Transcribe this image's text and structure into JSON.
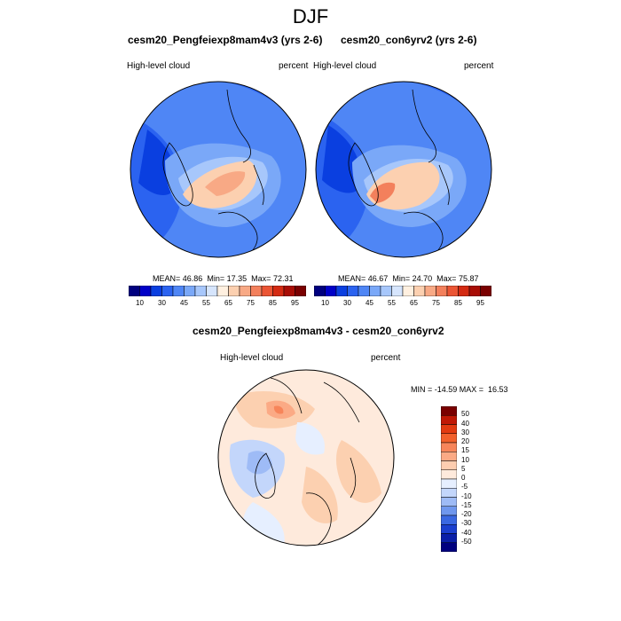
{
  "figure": {
    "title": "DJF"
  },
  "panels": [
    {
      "title": "cesm20_Pengfeiexp8mam4v3 (yrs 2-6)",
      "left_label": "High-level cloud",
      "right_label": "percent",
      "stats": {
        "mean_label": "MEAN=",
        "mean": "46.86",
        "min_label": "Min=",
        "min": "17.35",
        "max_label": "Max=",
        "max": "72.31"
      }
    },
    {
      "title": "cesm20_con6yrv2 (yrs 2-6)",
      "left_label": "High-level cloud",
      "right_label": "percent",
      "stats": {
        "mean_label": "MEAN=",
        "mean": "46.67",
        "min_label": "Min=",
        "min": "24.70",
        "max_label": "Max=",
        "max": "75.87"
      }
    }
  ],
  "diff_panel": {
    "title": "cesm20_Pengfeiexp8mam4v3 - cesm20_con6yrv2",
    "left_label": "High-level cloud",
    "right_label": "percent",
    "minmax": "MIN = -14.59 MAX =  16.53"
  },
  "colorbar_abs": {
    "labels": [
      "10",
      "30",
      "45",
      "55",
      "65",
      "75",
      "85",
      "95"
    ],
    "colors": [
      "#00007f",
      "#0000c8",
      "#0a3fe0",
      "#2b63f0",
      "#4f86f5",
      "#7aa8f8",
      "#a7c7fb",
      "#d6e5fd",
      "#fff0e0",
      "#fcd0b0",
      "#f8a985",
      "#f3805c",
      "#eb5534",
      "#d42a12",
      "#a80d05",
      "#7a0000"
    ]
  },
  "colorbar_diff": {
    "labels": [
      "50",
      "40",
      "30",
      "20",
      "15",
      "10",
      "5",
      "0",
      "-5",
      "-10",
      "-15",
      "-20",
      "-30",
      "-40",
      "-50"
    ],
    "colors": [
      "#7a0000",
      "#c01805",
      "#e23a10",
      "#f2602b",
      "#f7855a",
      "#fbaa85",
      "#fdcdb0",
      "#feeadc",
      "#e6efff",
      "#c3d6fb",
      "#9ebbf6",
      "#6f97ee",
      "#3a68e2",
      "#1b3fcf",
      "#0a1fa8",
      "#00007f"
    ]
  },
  "chart_data": [
    {
      "type": "heatmap",
      "title": "cesm20_Pengfeiexp8mam4v3 (yrs 2-6)",
      "subtitle": "DJF",
      "variable": "High-level cloud",
      "units": "percent",
      "projection": "polar-stereographic",
      "stats": {
        "mean": 46.86,
        "min": 17.35,
        "max": 72.31
      },
      "color_levels": [
        10,
        30,
        45,
        55,
        65,
        75,
        85,
        95
      ]
    },
    {
      "type": "heatmap",
      "title": "cesm20_con6yrv2 (yrs 2-6)",
      "subtitle": "DJF",
      "variable": "High-level cloud",
      "units": "percent",
      "projection": "polar-stereographic",
      "stats": {
        "mean": 46.67,
        "min": 24.7,
        "max": 75.87
      },
      "color_levels": [
        10,
        30,
        45,
        55,
        65,
        75,
        85,
        95
      ]
    },
    {
      "type": "heatmap",
      "title": "cesm20_Pengfeiexp8mam4v3 - cesm20_con6yrv2",
      "subtitle": "DJF",
      "variable": "High-level cloud",
      "units": "percent",
      "projection": "polar-stereographic",
      "stats": {
        "min": -14.59,
        "max": 16.53
      },
      "color_levels": [
        -50,
        -40,
        -30,
        -20,
        -15,
        -10,
        -5,
        0,
        5,
        10,
        15,
        20,
        30,
        40,
        50
      ]
    }
  ]
}
